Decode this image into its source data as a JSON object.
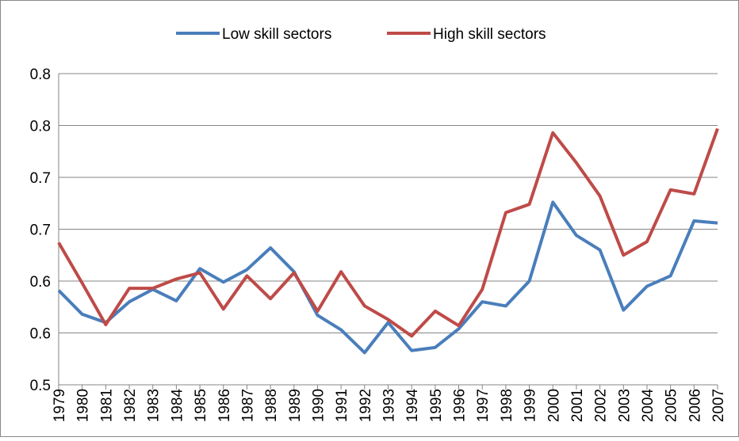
{
  "chart_data": {
    "type": "line",
    "categories": [
      "1979",
      "1980",
      "1981",
      "1982",
      "1983",
      "1984",
      "1985",
      "1986",
      "1987",
      "1988",
      "1989",
      "1990",
      "1991",
      "1992",
      "1993",
      "1994",
      "1995",
      "1996",
      "1997",
      "1998",
      "1999",
      "2000",
      "2001",
      "2002",
      "2003",
      "2004",
      "2005",
      "2006",
      "2007"
    ],
    "series": [
      {
        "name": "Low skill sectors",
        "color": "#4a7ebb",
        "values": [
          0.591,
          0.568,
          0.56,
          0.58,
          0.592,
          0.581,
          0.612,
          0.599,
          0.611,
          0.632,
          0.609,
          0.567,
          0.553,
          0.531,
          0.56,
          0.533,
          0.536,
          0.554,
          0.58,
          0.576,
          0.6,
          0.676,
          0.644,
          0.63,
          0.572,
          0.595,
          0.605,
          0.658,
          0.656
        ]
      },
      {
        "name": "High skill sectors",
        "color": "#be4b48",
        "values": [
          0.637,
          0.598,
          0.558,
          0.593,
          0.593,
          0.602,
          0.608,
          0.573,
          0.605,
          0.583,
          0.608,
          0.571,
          0.609,
          0.576,
          0.563,
          0.547,
          0.571,
          0.557,
          0.592,
          0.666,
          0.674,
          0.743,
          0.714,
          0.682,
          0.625,
          0.638,
          0.688,
          0.684,
          0.747
        ]
      }
    ],
    "ylim": [
      0.5,
      0.8
    ],
    "yticks": [
      {
        "value": 0.5,
        "label": "0.5"
      },
      {
        "value": 0.55,
        "label": "0.6"
      },
      {
        "value": 0.6,
        "label": "0.6"
      },
      {
        "value": 0.65,
        "label": "0.7"
      },
      {
        "value": 0.7,
        "label": "0.7"
      },
      {
        "value": 0.75,
        "label": "0.8"
      },
      {
        "value": 0.8,
        "label": "0.8"
      }
    ],
    "grid": true,
    "legend": "top"
  }
}
